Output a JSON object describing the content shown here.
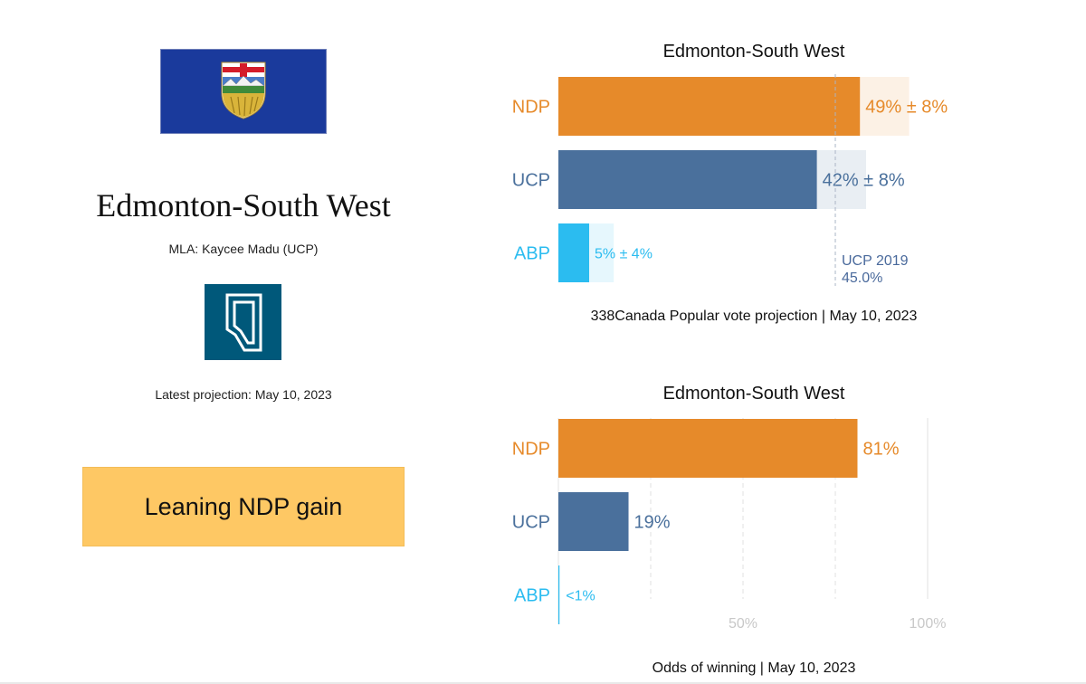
{
  "district": {
    "name": "Edmonton-South West",
    "mla": "MLA: Kaycee Madu (UCP)",
    "latest": "Latest projection: May 10, 2023",
    "rating": "Leaning NDP gain",
    "rating_color": "#fec864"
  },
  "icons": {
    "flag": "alberta-flag-icon",
    "logo": "alberta-map-logo-icon"
  },
  "colors": {
    "NDP": "#e68a2a",
    "UCP": "#4a709c",
    "ABP": "#2bbcf0"
  },
  "chart_data": [
    {
      "type": "bar",
      "orientation": "horizontal",
      "title": "Edmonton-South West",
      "caption": "338Canada Popular vote projection | May 10, 2023",
      "categories": [
        "NDP",
        "UCP",
        "ABP"
      ],
      "values": [
        49,
        42,
        5
      ],
      "errors": [
        8,
        8,
        4
      ],
      "labels": [
        "49% ± 8%",
        "42% ± 8%",
        "5% ± 4%"
      ],
      "xlim": [
        0,
        60
      ],
      "reference_line": {
        "value": 45.0,
        "label_line1": "UCP 2019",
        "label_line2": "45.0%"
      }
    },
    {
      "type": "bar",
      "orientation": "horizontal",
      "title": "Edmonton-South West",
      "caption": "Odds of winning | May 10, 2023",
      "categories": [
        "NDP",
        "UCP",
        "ABP"
      ],
      "values": [
        81,
        19,
        0.3
      ],
      "labels": [
        "81%",
        "19%",
        "<1%"
      ],
      "xlim": [
        0,
        100
      ],
      "gridlines": [
        25,
        50,
        75,
        100
      ],
      "xtick_labels": {
        "50": "50%",
        "100": "100%"
      }
    }
  ]
}
